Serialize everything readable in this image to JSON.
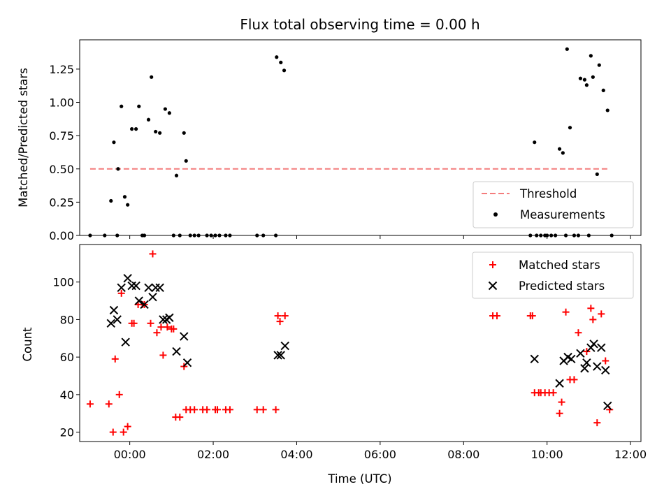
{
  "chart_data": [
    {
      "type": "scatter",
      "title": "Flux total observing time = 0.00 h",
      "xlabel": "",
      "ylabel": "Matched/Predicted stars",
      "xlim": [
        -1.2,
        12.25
      ],
      "ylim": [
        0,
        1.47
      ],
      "yticks": [
        0.0,
        0.25,
        0.5,
        0.75,
        1.0,
        1.25
      ],
      "ytick_labels": [
        "0.00",
        "0.25",
        "0.50",
        "0.75",
        "1.00",
        "1.25"
      ],
      "xticks": [
        0,
        2,
        4,
        6,
        8,
        10,
        12
      ],
      "xtick_labels_shown": false,
      "grid": false,
      "legend_position": "lower right",
      "threshold": {
        "name": "Threshold",
        "value": 0.5,
        "x_range": [
          -0.95,
          11.5
        ],
        "color": "#f47c7c",
        "style": "dashed"
      },
      "series": [
        {
          "name": "Measurements",
          "marker": "dot",
          "color": "#000000",
          "points": [
            [
              -0.95,
              0
            ],
            [
              -0.3,
              0
            ],
            [
              -0.6,
              0
            ],
            [
              -0.45,
              0.26
            ],
            [
              -0.38,
              0.7
            ],
            [
              -0.28,
              0.5
            ],
            [
              -0.2,
              0.97
            ],
            [
              -0.12,
              0.29
            ],
            [
              -0.05,
              0.23
            ],
            [
              0.05,
              0.8
            ],
            [
              0.15,
              0.8
            ],
            [
              0.22,
              0.97
            ],
            [
              0.3,
              0
            ],
            [
              0.35,
              0
            ],
            [
              0.45,
              0.87
            ],
            [
              0.52,
              1.19
            ],
            [
              0.62,
              0.78
            ],
            [
              0.72,
              0.77
            ],
            [
              0.85,
              0.95
            ],
            [
              0.95,
              0.92
            ],
            [
              1.05,
              0
            ],
            [
              1.12,
              0.45
            ],
            [
              1.2,
              0
            ],
            [
              1.3,
              0.77
            ],
            [
              1.35,
              0.56
            ],
            [
              1.45,
              0
            ],
            [
              1.55,
              0
            ],
            [
              1.65,
              0
            ],
            [
              1.85,
              0
            ],
            [
              1.95,
              0
            ],
            [
              2.05,
              0
            ],
            [
              2.15,
              0
            ],
            [
              2.3,
              0
            ],
            [
              2.4,
              0
            ],
            [
              3.05,
              0
            ],
            [
              3.2,
              0
            ],
            [
              3.5,
              0
            ],
            [
              3.52,
              1.34
            ],
            [
              3.62,
              1.3
            ],
            [
              3.7,
              1.24
            ],
            [
              9.6,
              0
            ],
            [
              9.7,
              0.7
            ],
            [
              9.75,
              0
            ],
            [
              9.85,
              0
            ],
            [
              9.95,
              0
            ],
            [
              10.0,
              0
            ],
            [
              10.1,
              0
            ],
            [
              10.2,
              0
            ],
            [
              10.3,
              0.65
            ],
            [
              10.38,
              0.62
            ],
            [
              10.45,
              0
            ],
            [
              10.48,
              1.4
            ],
            [
              10.55,
              0.81
            ],
            [
              10.65,
              0
            ],
            [
              10.75,
              0
            ],
            [
              10.8,
              1.18
            ],
            [
              10.9,
              1.17
            ],
            [
              10.95,
              1.13
            ],
            [
              11.0,
              0
            ],
            [
              11.05,
              1.35
            ],
            [
              11.1,
              1.19
            ],
            [
              11.2,
              0.46
            ],
            [
              11.25,
              1.28
            ],
            [
              11.35,
              1.09
            ],
            [
              11.45,
              0.94
            ],
            [
              11.55,
              0
            ]
          ]
        }
      ],
      "legend": [
        {
          "label": "Threshold",
          "symbol": "dashed-line",
          "color": "#f47c7c"
        },
        {
          "label": "Measurements",
          "symbol": "dot",
          "color": "#000000"
        }
      ]
    },
    {
      "type": "scatter",
      "title": "",
      "xlabel": "Time (UTC)",
      "ylabel": "Count",
      "xlim": [
        -1.2,
        12.25
      ],
      "ylim": [
        15,
        120
      ],
      "yticks": [
        20,
        40,
        60,
        80,
        100
      ],
      "ytick_labels": [
        "20",
        "40",
        "60",
        "80",
        "100"
      ],
      "xticks": [
        0,
        2,
        4,
        6,
        8,
        10,
        12
      ],
      "xtick_labels": [
        "00:00",
        "02:00",
        "04:00",
        "06:00",
        "08:00",
        "10:00",
        "12:00"
      ],
      "grid": false,
      "legend_position": "upper right",
      "series": [
        {
          "name": "Matched stars",
          "marker": "plus",
          "color": "#ff0000",
          "points": [
            [
              -0.95,
              35
            ],
            [
              -0.5,
              35
            ],
            [
              -0.4,
              20
            ],
            [
              -0.35,
              59
            ],
            [
              -0.25,
              40
            ],
            [
              -0.2,
              94
            ],
            [
              -0.15,
              20
            ],
            [
              -0.05,
              23
            ],
            [
              0.05,
              78
            ],
            [
              0.1,
              78
            ],
            [
              0.2,
              88
            ],
            [
              0.3,
              88
            ],
            [
              0.35,
              88
            ],
            [
              0.5,
              78
            ],
            [
              0.55,
              115
            ],
            [
              0.65,
              73
            ],
            [
              0.75,
              76
            ],
            [
              0.8,
              61
            ],
            [
              0.9,
              76
            ],
            [
              1.0,
              75
            ],
            [
              1.05,
              75
            ],
            [
              1.1,
              28
            ],
            [
              1.2,
              28
            ],
            [
              1.3,
              55
            ],
            [
              1.35,
              32
            ],
            [
              1.45,
              32
            ],
            [
              1.55,
              32
            ],
            [
              1.75,
              32
            ],
            [
              1.85,
              32
            ],
            [
              2.05,
              32
            ],
            [
              2.1,
              32
            ],
            [
              2.3,
              32
            ],
            [
              2.4,
              32
            ],
            [
              3.05,
              32
            ],
            [
              3.2,
              32
            ],
            [
              3.5,
              32
            ],
            [
              3.55,
              82
            ],
            [
              3.6,
              79
            ],
            [
              3.72,
              82
            ],
            [
              8.7,
              82
            ],
            [
              8.8,
              82
            ],
            [
              9.6,
              82
            ],
            [
              9.65,
              82
            ],
            [
              9.7,
              41
            ],
            [
              9.8,
              41
            ],
            [
              9.85,
              41
            ],
            [
              9.95,
              41
            ],
            [
              10.05,
              41
            ],
            [
              10.15,
              41
            ],
            [
              10.3,
              30
            ],
            [
              10.35,
              36
            ],
            [
              10.45,
              84
            ],
            [
              10.55,
              48
            ],
            [
              10.65,
              48
            ],
            [
              10.75,
              73
            ],
            [
              10.95,
              63
            ],
            [
              11.05,
              86
            ],
            [
              11.1,
              80
            ],
            [
              11.2,
              25
            ],
            [
              11.3,
              83
            ],
            [
              11.4,
              58
            ],
            [
              11.5,
              32
            ]
          ]
        },
        {
          "name": "Predicted stars",
          "marker": "x",
          "color": "#000000",
          "points": [
            [
              -0.45,
              78
            ],
            [
              -0.38,
              85
            ],
            [
              -0.3,
              80
            ],
            [
              -0.2,
              97
            ],
            [
              -0.1,
              68
            ],
            [
              -0.05,
              102
            ],
            [
              0.05,
              98
            ],
            [
              0.15,
              98
            ],
            [
              0.22,
              90
            ],
            [
              0.35,
              88
            ],
            [
              0.45,
              97
            ],
            [
              0.55,
              92
            ],
            [
              0.62,
              97
            ],
            [
              0.72,
              97
            ],
            [
              0.8,
              80
            ],
            [
              0.88,
              80
            ],
            [
              0.95,
              81
            ],
            [
              1.12,
              63
            ],
            [
              1.3,
              71
            ],
            [
              1.38,
              57
            ],
            [
              3.55,
              61
            ],
            [
              3.62,
              61
            ],
            [
              3.72,
              66
            ],
            [
              9.7,
              59
            ],
            [
              10.3,
              46
            ],
            [
              10.4,
              58
            ],
            [
              10.5,
              60
            ],
            [
              10.58,
              59
            ],
            [
              10.8,
              62
            ],
            [
              10.9,
              54
            ],
            [
              10.95,
              57
            ],
            [
              11.05,
              65
            ],
            [
              11.12,
              67
            ],
            [
              11.2,
              55
            ],
            [
              11.3,
              65
            ],
            [
              11.4,
              53
            ],
            [
              11.45,
              34
            ]
          ]
        }
      ],
      "legend": [
        {
          "label": "Matched stars",
          "symbol": "plus",
          "color": "#ff0000"
        },
        {
          "label": "Predicted stars",
          "symbol": "x",
          "color": "#000000"
        }
      ]
    }
  ]
}
